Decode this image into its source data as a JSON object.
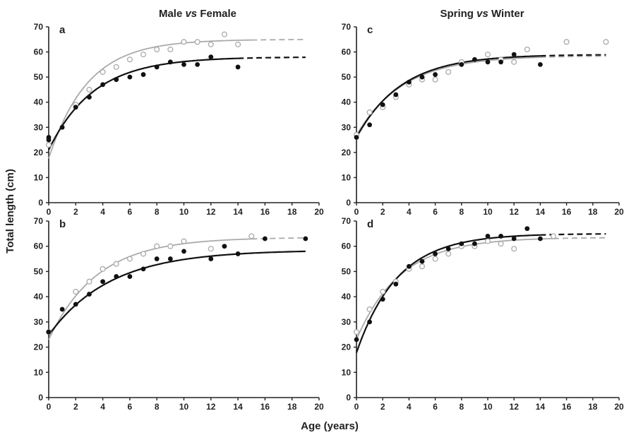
{
  "column_titles": [
    {
      "a": "Male ",
      "b": "vs",
      "c": " Female"
    },
    {
      "a": "Spring ",
      "b": "vs",
      "c": " Winter"
    }
  ],
  "ylabel": "Total length (cm)",
  "xlabel": "Age (years)",
  "colors": {
    "filled": "#111111",
    "open": "#aaaaaa"
  },
  "chart_data": [
    {
      "type": "scatter",
      "panel": "a",
      "xlim": [
        0,
        20
      ],
      "ylim": [
        0,
        70
      ],
      "xticks": [
        0,
        2,
        4,
        6,
        8,
        10,
        12,
        14,
        16,
        18,
        20
      ],
      "yticks": [
        0,
        10,
        20,
        30,
        40,
        50,
        60,
        70
      ],
      "series": [
        {
          "marker": "filled",
          "color": "#111111",
          "points": [
            [
              0,
              26
            ],
            [
              0,
              25
            ],
            [
              1,
              30
            ],
            [
              2,
              38
            ],
            [
              3,
              42
            ],
            [
              4,
              47
            ],
            [
              5,
              49
            ],
            [
              6,
              50
            ],
            [
              7,
              51
            ],
            [
              8,
              54
            ],
            [
              9,
              56
            ],
            [
              10,
              55
            ],
            [
              11,
              55
            ],
            [
              12,
              58
            ],
            [
              14,
              54
            ]
          ],
          "fit": {
            "linf": 58,
            "k": 0.3,
            "t0": -1.5,
            "solid_to": 14,
            "dashed_to": 19
          }
        },
        {
          "marker": "open",
          "color": "#aaaaaa",
          "points": [
            [
              0,
              23
            ],
            [
              2,
              39
            ],
            [
              3,
              45
            ],
            [
              4,
              52
            ],
            [
              5,
              54
            ],
            [
              6,
              57
            ],
            [
              7,
              59
            ],
            [
              8,
              61
            ],
            [
              9,
              61
            ],
            [
              10,
              64
            ],
            [
              11,
              64
            ],
            [
              12,
              63
            ],
            [
              13,
              67
            ],
            [
              14,
              63
            ]
          ],
          "fit": {
            "linf": 65,
            "k": 0.35,
            "t0": -0.9,
            "solid_to": 15,
            "dashed_to": 19
          }
        }
      ]
    },
    {
      "type": "scatter",
      "panel": "b",
      "xlim": [
        0,
        20
      ],
      "ylim": [
        0,
        70
      ],
      "xticks": [
        0,
        2,
        4,
        6,
        8,
        10,
        12,
        14,
        16,
        18,
        20
      ],
      "yticks": [
        0,
        10,
        20,
        30,
        40,
        50,
        60,
        70
      ],
      "series": [
        {
          "marker": "filled",
          "color": "#111111",
          "points": [
            [
              0,
              26
            ],
            [
              1,
              35
            ],
            [
              2,
              37
            ],
            [
              3,
              41
            ],
            [
              4,
              46
            ],
            [
              5,
              48
            ],
            [
              6,
              48
            ],
            [
              7,
              51
            ],
            [
              8,
              55
            ],
            [
              9,
              55
            ],
            [
              10,
              58
            ],
            [
              12,
              55
            ],
            [
              13,
              60
            ],
            [
              14,
              57
            ],
            [
              16,
              63
            ],
            [
              19,
              63
            ]
          ],
          "fit": {
            "linf": 58.5,
            "k": 0.22,
            "t0": -2.5,
            "solid_to": 19,
            "dashed_to": 19
          }
        },
        {
          "marker": "open",
          "color": "#aaaaaa",
          "points": [
            [
              0,
              26
            ],
            [
              2,
              42
            ],
            [
              3,
              46
            ],
            [
              4,
              51
            ],
            [
              5,
              53
            ],
            [
              6,
              55
            ],
            [
              7,
              57
            ],
            [
              8,
              60
            ],
            [
              9,
              60
            ],
            [
              10,
              62
            ],
            [
              12,
              59
            ],
            [
              15,
              64
            ]
          ],
          "fit": {
            "linf": 63.5,
            "k": 0.28,
            "t0": -1.6,
            "solid_to": 15,
            "dashed_to": 19
          }
        }
      ]
    },
    {
      "type": "scatter",
      "panel": "c",
      "xlim": [
        0,
        20
      ],
      "ylim": [
        0,
        70
      ],
      "xticks": [
        0,
        2,
        4,
        6,
        8,
        10,
        12,
        14,
        16,
        18,
        20
      ],
      "yticks": [
        0,
        10,
        20,
        30,
        40,
        50,
        60,
        70
      ],
      "series": [
        {
          "marker": "filled",
          "color": "#111111",
          "points": [
            [
              0,
              26
            ],
            [
              1,
              31
            ],
            [
              2,
              39
            ],
            [
              3,
              43
            ],
            [
              4,
              48
            ],
            [
              5,
              50
            ],
            [
              6,
              51
            ],
            [
              8,
              55
            ],
            [
              9,
              57
            ],
            [
              10,
              56
            ],
            [
              11,
              56
            ],
            [
              12,
              59
            ],
            [
              14,
              55
            ]
          ],
          "fit": {
            "linf": 59,
            "k": 0.29,
            "t0": -2.0,
            "solid_to": 14,
            "dashed_to": 19
          }
        },
        {
          "marker": "open",
          "color": "#aaaaaa",
          "points": [
            [
              0,
              27
            ],
            [
              1,
              36
            ],
            [
              2,
              38
            ],
            [
              3,
              42
            ],
            [
              4,
              47
            ],
            [
              5,
              49
            ],
            [
              6,
              49
            ],
            [
              7,
              52
            ],
            [
              8,
              56
            ],
            [
              10,
              59
            ],
            [
              11,
              57
            ],
            [
              12,
              56
            ],
            [
              13,
              61
            ],
            [
              16,
              64
            ],
            [
              19,
              64
            ]
          ],
          "fit": {
            "linf": 58.5,
            "k": 0.28,
            "t0": -2.2,
            "solid_to": 14,
            "dashed_to": 19
          }
        }
      ]
    },
    {
      "type": "scatter",
      "panel": "d",
      "xlim": [
        0,
        20
      ],
      "ylim": [
        0,
        70
      ],
      "xticks": [
        0,
        2,
        4,
        6,
        8,
        10,
        12,
        14,
        16,
        18,
        20
      ],
      "yticks": [
        0,
        10,
        20,
        30,
        40,
        50,
        60,
        70
      ],
      "series": [
        {
          "marker": "filled",
          "color": "#111111",
          "points": [
            [
              0,
              23
            ],
            [
              1,
              30
            ],
            [
              2,
              39
            ],
            [
              3,
              45
            ],
            [
              4,
              52
            ],
            [
              5,
              54
            ],
            [
              6,
              57
            ],
            [
              7,
              59
            ],
            [
              8,
              61
            ],
            [
              9,
              61
            ],
            [
              10,
              64
            ],
            [
              11,
              64
            ],
            [
              12,
              63
            ],
            [
              13,
              67
            ],
            [
              14,
              63
            ]
          ],
          "fit": {
            "linf": 65,
            "k": 0.32,
            "t0": -1.0,
            "solid_to": 14,
            "dashed_to": 19
          }
        },
        {
          "marker": "open",
          "color": "#aaaaaa",
          "points": [
            [
              0,
              26
            ],
            [
              1,
              35
            ],
            [
              2,
              42
            ],
            [
              3,
              46
            ],
            [
              4,
              51
            ],
            [
              5,
              52
            ],
            [
              6,
              55
            ],
            [
              7,
              57
            ],
            [
              8,
              60
            ],
            [
              9,
              60
            ],
            [
              10,
              62
            ],
            [
              11,
              61
            ],
            [
              12,
              59
            ],
            [
              15,
              64
            ]
          ],
          "fit": {
            "linf": 63.5,
            "k": 0.3,
            "t0": -1.5,
            "solid_to": 15,
            "dashed_to": 19
          }
        }
      ]
    }
  ]
}
